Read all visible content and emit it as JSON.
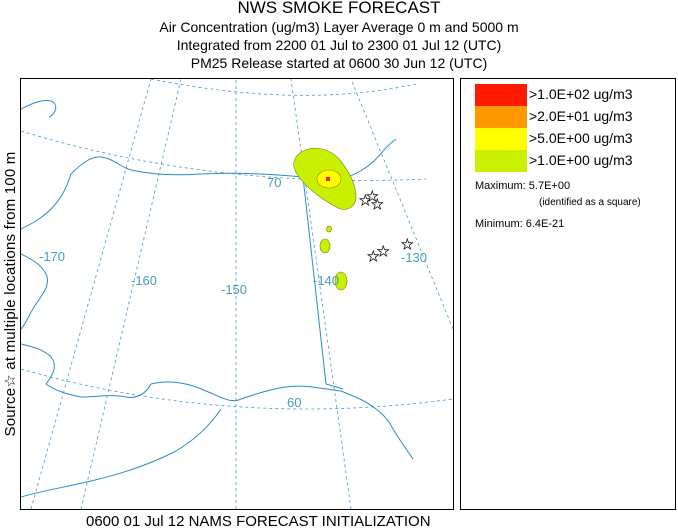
{
  "header": {
    "title": "NWS SMOKE FORECAST",
    "line1": "Air Concentration (ug/m3) Layer Average     0 m and  5000 m",
    "line2": "Integrated from 2200 01 Jul to 2300 01 Jul 12 (UTC)",
    "line3": "PM25 Release started at 0600 30 Jun 12 (UTC)"
  },
  "side_label": "Source☆ at multiple locations from  100 m",
  "footer": "0600 01 Jul 12 NAMS FORECAST INITIALIZATION",
  "legend": {
    "items": [
      {
        "label": ">1.0E+02 ug/m3",
        "color": "#ff1a00"
      },
      {
        "label": ">2.0E+01 ug/m3",
        "color": "#ff9900"
      },
      {
        "label": ">5.0E+00 ug/m3",
        "color": "#ffff00"
      },
      {
        "label": ">1.0E+00 ug/m3",
        "color": "#c8f000"
      }
    ],
    "maximum": "Maximum: 5.7E+00",
    "maximum_note": "(identified as a square)",
    "minimum": "Minimum: 6.4E-21"
  },
  "map": {
    "graticule_color": "#4a9ac8",
    "coast_color": "#2b8cc4",
    "labels": {
      "lon_170": "-170",
      "lon_160": "-160",
      "lon_150": "-150",
      "lon_140": "-140",
      "lon_130": "-130",
      "lat_70": "70",
      "lat_60": "60"
    },
    "source_icon": "star-icon",
    "max_marker_icon": "square-icon"
  }
}
